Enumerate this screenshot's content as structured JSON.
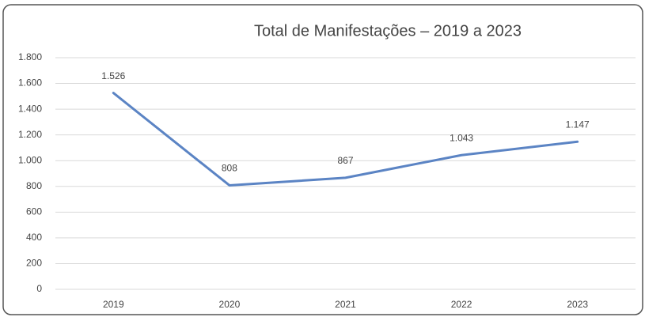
{
  "chart_data": {
    "type": "line",
    "title": "Total de Manifestações – 2019 a 2023",
    "categories": [
      "2019",
      "2020",
      "2021",
      "2022",
      "2023"
    ],
    "series": [
      {
        "name": null,
        "color": "#5b84c4",
        "values": [
          1526,
          808,
          867,
          1043,
          1147
        ],
        "value_labels": [
          "1.526",
          "808",
          "867",
          "1.043",
          "1.147"
        ]
      }
    ],
    "ylim": [
      0,
      1800
    ],
    "yticks": [
      0,
      200,
      400,
      600,
      800,
      {
        "value": 1000,
        "label": "1.000"
      },
      {
        "value": 1200,
        "label": "1.200"
      },
      {
        "value": 1400,
        "label": "1.400"
      },
      {
        "value": 1600,
        "label": "1.600"
      },
      {
        "value": 1800,
        "label": "1.800"
      }
    ],
    "grid": true
  }
}
